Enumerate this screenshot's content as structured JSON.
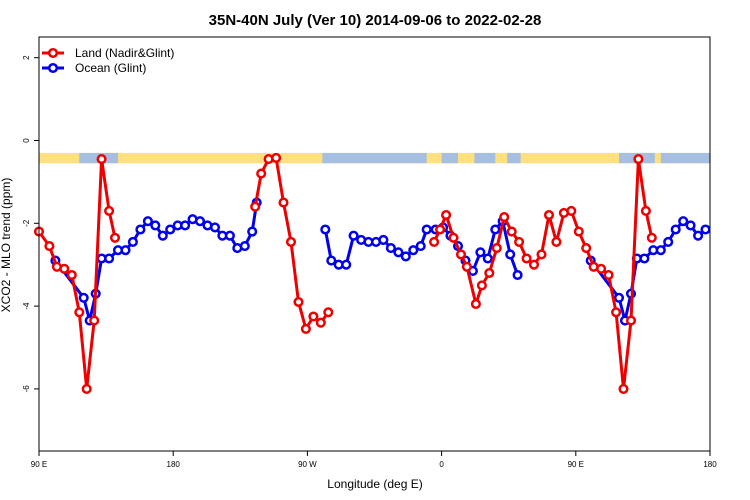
{
  "chart_data": {
    "type": "line",
    "title": "35N-40N July (Ver 10)   2014-09-06 to 2022-02-28",
    "xlabel": "Longitude (deg E)",
    "ylabel": "XCO2 - MLO trend (ppm)",
    "xlim": [
      90,
      540
    ],
    "ylim": [
      -7.5,
      2.5
    ],
    "x_ticks": [
      {
        "value": 90,
        "label": "90 E"
      },
      {
        "value": 180,
        "label": "180"
      },
      {
        "value": 270,
        "label": "90 W"
      },
      {
        "value": 360,
        "label": "0"
      },
      {
        "value": 450,
        "label": "90 E"
      },
      {
        "value": 540,
        "label": "180"
      }
    ],
    "y_ticks": [
      {
        "value": 2,
        "label": "2"
      },
      {
        "value": 0,
        "label": "0"
      },
      {
        "value": -2,
        "label": "-2"
      },
      {
        "value": -4,
        "label": "-4"
      },
      {
        "value": -6,
        "label": "-6"
      }
    ],
    "legend_position": "top-left",
    "series": [
      {
        "name": "Land (Nadir&Glint)",
        "color": "#ee0000",
        "segments": [
          [
            [
              90,
              -2.2
            ],
            [
              97,
              -2.55
            ],
            [
              102,
              -3.05
            ],
            [
              107,
              -3.1
            ],
            [
              112,
              -3.25
            ],
            [
              117,
              -4.15
            ],
            [
              122,
              -6.0
            ],
            [
              127,
              -4.35
            ],
            [
              132,
              -0.45
            ],
            [
              137,
              -1.7
            ],
            [
              141,
              -2.35
            ]
          ],
          [
            [
              235,
              -1.6
            ],
            [
              239,
              -0.8
            ],
            [
              244,
              -0.45
            ],
            [
              249,
              -0.42
            ],
            [
              254,
              -1.5
            ],
            [
              259,
              -2.45
            ],
            [
              264,
              -3.9
            ],
            [
              269,
              -4.55
            ],
            [
              274,
              -4.25
            ],
            [
              279,
              -4.4
            ],
            [
              284,
              -4.15
            ]
          ],
          [
            [
              355,
              -2.45
            ],
            [
              359,
              -2.15
            ],
            [
              363,
              -1.8
            ],
            [
              368,
              -2.35
            ],
            [
              373,
              -2.75
            ],
            [
              377,
              -3.05
            ],
            [
              383,
              -3.95
            ],
            [
              387,
              -3.5
            ],
            [
              392,
              -3.2
            ],
            [
              397,
              -2.6
            ],
            [
              402,
              -1.85
            ],
            [
              407,
              -2.2
            ],
            [
              412,
              -2.45
            ],
            [
              417,
              -2.85
            ],
            [
              422,
              -3.0
            ],
            [
              427,
              -2.75
            ],
            [
              432,
              -1.8
            ],
            [
              437,
              -2.45
            ],
            [
              442,
              -1.75
            ],
            [
              447,
              -1.7
            ],
            [
              452,
              -2.2
            ],
            [
              457,
              -2.6
            ],
            [
              462,
              -3.05
            ],
            [
              467,
              -3.1
            ],
            [
              472,
              -3.25
            ],
            [
              477,
              -4.15
            ],
            [
              482,
              -6.0
            ],
            [
              487,
              -4.35
            ],
            [
              492,
              -0.45
            ],
            [
              497,
              -1.7
            ],
            [
              501,
              -2.35
            ]
          ]
        ]
      },
      {
        "name": "Ocean (Glint)",
        "color": "#0000ee",
        "segments": [
          [
            [
              101,
              -2.9
            ],
            [
              120,
              -3.8
            ],
            [
              124,
              -4.35
            ],
            [
              128,
              -3.7
            ],
            [
              132,
              -2.85
            ],
            [
              137,
              -2.85
            ],
            [
              143,
              -2.65
            ],
            [
              148,
              -2.65
            ],
            [
              153,
              -2.45
            ],
            [
              158,
              -2.15
            ],
            [
              163,
              -1.95
            ],
            [
              168,
              -2.05
            ],
            [
              173,
              -2.3
            ],
            [
              178,
              -2.15
            ],
            [
              183,
              -2.05
            ],
            [
              188,
              -2.05
            ],
            [
              193,
              -1.9
            ],
            [
              198,
              -1.95
            ],
            [
              203,
              -2.05
            ],
            [
              208,
              -2.1
            ],
            [
              213,
              -2.3
            ],
            [
              218,
              -2.3
            ],
            [
              223,
              -2.6
            ],
            [
              228,
              -2.55
            ],
            [
              233,
              -2.2
            ],
            [
              236,
              -1.5
            ]
          ],
          [
            [
              282,
              -2.15
            ],
            [
              286,
              -2.9
            ],
            [
              291,
              -3.0
            ],
            [
              296,
              -3.0
            ],
            [
              301,
              -2.3
            ],
            [
              306,
              -2.4
            ],
            [
              311,
              -2.45
            ],
            [
              316,
              -2.45
            ],
            [
              321,
              -2.4
            ],
            [
              326,
              -2.6
            ],
            [
              331,
              -2.7
            ],
            [
              336,
              -2.8
            ],
            [
              341,
              -2.65
            ],
            [
              346,
              -2.55
            ],
            [
              350,
              -2.15
            ],
            [
              356,
              -2.15
            ],
            [
              361,
              -2.1
            ],
            [
              366,
              -2.3
            ],
            [
              371,
              -2.55
            ],
            [
              376,
              -2.9
            ],
            [
              381,
              -3.15
            ],
            [
              386,
              -2.7
            ],
            [
              391,
              -2.85
            ],
            [
              396,
              -2.15
            ],
            [
              401,
              -1.95
            ],
            [
              406,
              -2.75
            ],
            [
              411,
              -3.25
            ]
          ],
          [
            [
              460,
              -2.9
            ],
            [
              479,
              -3.8
            ],
            [
              483,
              -4.35
            ],
            [
              487,
              -3.7
            ],
            [
              491,
              -2.85
            ],
            [
              496,
              -2.85
            ],
            [
              502,
              -2.65
            ],
            [
              507,
              -2.65
            ],
            [
              512,
              -2.45
            ],
            [
              517,
              -2.15
            ],
            [
              522,
              -1.95
            ],
            [
              527,
              -2.05
            ],
            [
              532,
              -2.3
            ],
            [
              537,
              -2.15
            ]
          ]
        ]
      }
    ],
    "land_ocean_strip": {
      "y_range": [
        -0.55,
        -0.3
      ],
      "land_color": "#ffe080",
      "ocean_color": "#a6bfe0",
      "ocean_ranges": [
        [
          117,
          143
        ],
        [
          280,
          350
        ],
        [
          360,
          371
        ],
        [
          382,
          396
        ],
        [
          404,
          413
        ],
        [
          479,
          503
        ],
        [
          507,
          540
        ]
      ]
    }
  }
}
